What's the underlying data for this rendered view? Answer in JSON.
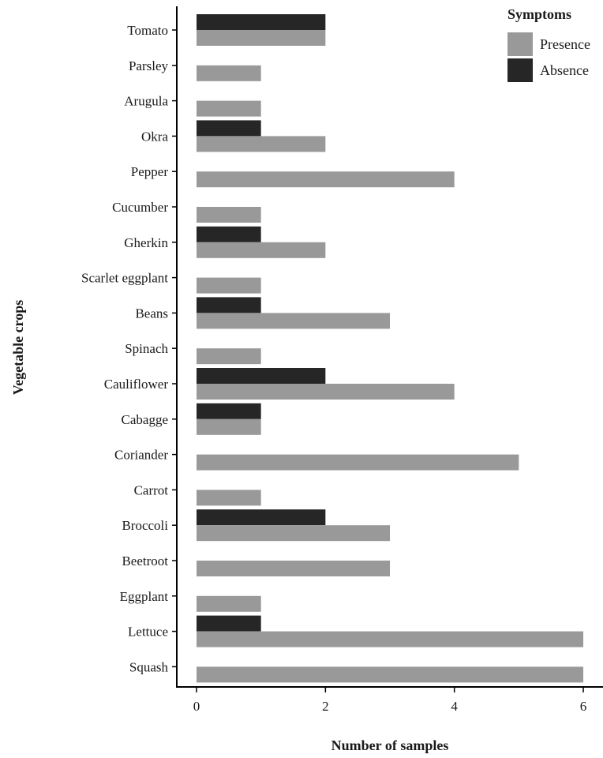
{
  "chart_data": {
    "type": "bar",
    "orientation": "horizontal",
    "title": "",
    "xlabel": "Number of samples",
    "ylabel": "Vegetable crops",
    "xlim": [
      0,
      6
    ],
    "xticks": [
      0,
      2,
      4,
      6
    ],
    "grid": false,
    "legend": {
      "title": "Symptoms",
      "placement": "top-right"
    },
    "categories": [
      "Tomato",
      "Parsley",
      "Arugula",
      "Okra",
      "Pepper",
      "Cucumber",
      "Gherkin",
      "Scarlet eggplant",
      "Beans",
      "Spinach",
      "Cauliflower",
      "Cabagge",
      "Coriander",
      "Carrot",
      "Broccoli",
      "Beetroot",
      "Eggplant",
      "Lettuce",
      "Squash"
    ],
    "series": [
      {
        "name": "Presence",
        "color": "#999999",
        "values": [
          2,
          1,
          1,
          2,
          4,
          1,
          2,
          1,
          3,
          1,
          4,
          1,
          5,
          1,
          3,
          3,
          1,
          6,
          6
        ]
      },
      {
        "name": "Absence",
        "color": "#262626",
        "values": [
          2,
          0,
          0,
          1,
          0,
          0,
          1,
          0,
          1,
          0,
          2,
          1,
          0,
          0,
          2,
          0,
          0,
          1,
          0
        ]
      }
    ]
  }
}
